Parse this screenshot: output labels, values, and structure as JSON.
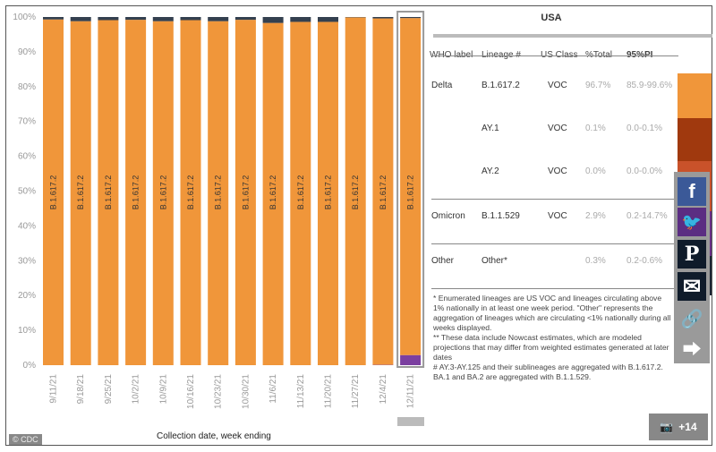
{
  "chart_data": {
    "type": "bar",
    "stacked": true,
    "categories": [
      "9/11/21",
      "9/18/21",
      "9/25/21",
      "10/2/21",
      "10/9/21",
      "10/16/21",
      "10/23/21",
      "10/30/21",
      "11/6/21",
      "11/13/21",
      "11/20/21",
      "11/27/21",
      "12/4/21",
      "12/11/21"
    ],
    "series": [
      {
        "name": "B.1.1.529",
        "color": "#7b3fa0",
        "values": [
          0,
          0,
          0,
          0,
          0,
          0,
          0,
          0,
          0,
          0,
          0,
          0,
          0.1,
          2.9
        ]
      },
      {
        "name": "B.1.617.2",
        "color": "#f0963a",
        "values": [
          99.3,
          98.8,
          99.1,
          99.2,
          98.8,
          99.1,
          98.8,
          99.2,
          98.3,
          98.6,
          98.6,
          99.9,
          99.5,
          96.8
        ]
      },
      {
        "name": "Other*",
        "color": "#34404f",
        "values": [
          0.7,
          1.2,
          0.9,
          0.8,
          1.2,
          0.9,
          1.2,
          0.8,
          1.7,
          1.4,
          1.4,
          0.1,
          0.4,
          0.3
        ]
      }
    ],
    "bar_label": "B.1.617.2",
    "yticks": [
      "0%",
      "10%",
      "20%",
      "30%",
      "40%",
      "50%",
      "60%",
      "70%",
      "80%",
      "90%",
      "100%"
    ],
    "ylim": [
      0,
      100
    ],
    "xlabel": "Collection date, week ending",
    "highlighted": "12/11/21",
    "grid": false
  },
  "credit": "© CDC",
  "panel": {
    "country": "USA",
    "headers": [
      "WHO label",
      "Lineage #",
      "US Class",
      "%Total",
      "95%PI"
    ],
    "rows": [
      {
        "who": "Delta",
        "lineage": "B.1.617.2",
        "cls": "VOC",
        "total": "96.7%",
        "pi": "85.9-99.6%",
        "color": "#f0963a"
      },
      {
        "who": "",
        "lineage": "AY.1",
        "cls": "VOC",
        "total": "0.1%",
        "pi": "0.0-0.1%",
        "color": "#a0390e"
      },
      {
        "who": "",
        "lineage": "AY.2",
        "cls": "VOC",
        "total": "0.0%",
        "pi": "0.0-0.0%",
        "color": "#c9522a"
      },
      {
        "who": "Omicron",
        "lineage": "B.1.1.529",
        "cls": "VOC",
        "total": "2.9%",
        "pi": "0.2-14.7%",
        "color": "#6a2f86"
      },
      {
        "who": "Other",
        "lineage": "Other*",
        "cls": "",
        "total": "0.3%",
        "pi": "0.2-0.6%",
        "color": "#1c2533"
      }
    ],
    "notes": [
      "*     Enumerated lineages are US VOC and lineages circulating above 1% nationally in at least one week period. \"Other\" represents the aggregation of lineages which are circulating <1% nationally during all weeks displayed.",
      "**     These data include Nowcast estimates, which are modeled projections that may differ from weighted estimates generated at later dates",
      "#     AY.3-AY.125 and their sublineages are aggregated with B.1.617.2. BA.1 and BA.2 are aggregated with B.1.1.529."
    ]
  },
  "social": {
    "facebook": "f",
    "pinterest": "P",
    "photo_count": "+14",
    "colors": {
      "facebook": "#3b5998",
      "twitter": "#5b2d82",
      "pinterest": "#0f1b2a"
    }
  }
}
